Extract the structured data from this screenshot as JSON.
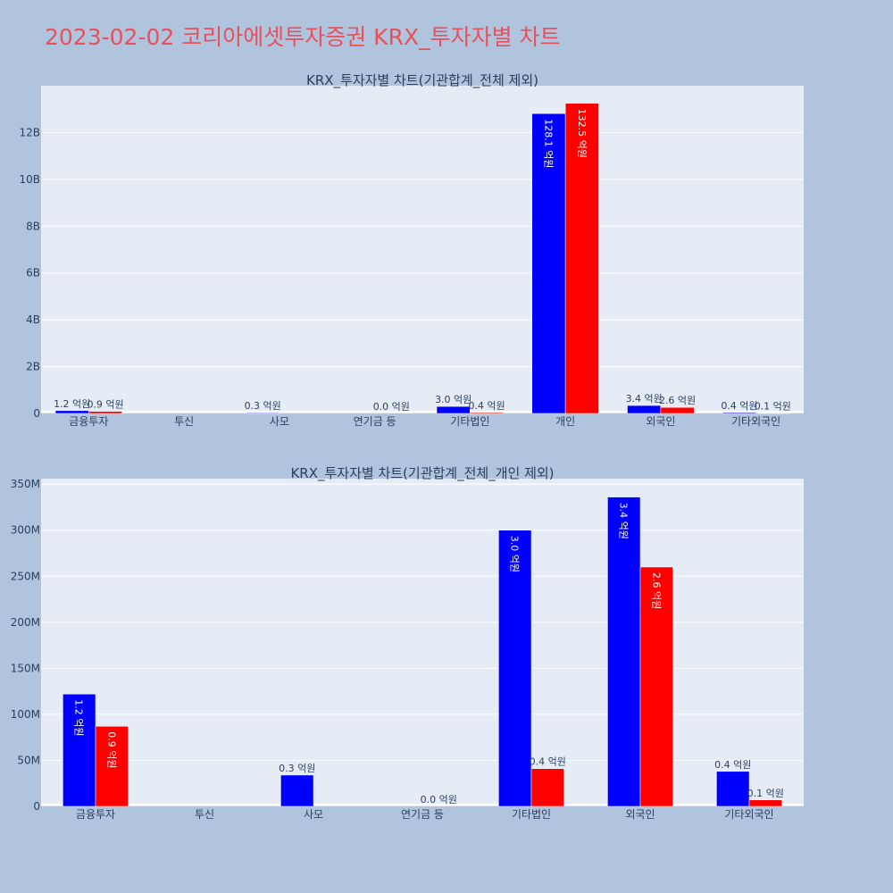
{
  "page": {
    "title": "2023-02-02 코리아에셋투자증권 KRX_투자자별 차트",
    "background": "#b0c4de",
    "title_color": "#e8505b"
  },
  "colors": {
    "series_buy": "#0000ff",
    "series_sell": "#ff0000",
    "plot_bg": "#e5ecf6",
    "text": "#2a3f5f"
  },
  "chart_data": [
    {
      "type": "bar",
      "title": "KRX_투자자별 차트(기관합계_전체 제외)",
      "categories": [
        "금융투자",
        "투신",
        "사모",
        "연기금 등",
        "기타법인",
        "개인",
        "외국인",
        "기타외국인"
      ],
      "ylim": [
        0,
        14000000000
      ],
      "yticks": [
        {
          "value": 0,
          "label": "0"
        },
        {
          "value": 2000000000,
          "label": "2B"
        },
        {
          "value": 4000000000,
          "label": "4B"
        },
        {
          "value": 6000000000,
          "label": "6B"
        },
        {
          "value": 8000000000,
          "label": "8B"
        },
        {
          "value": 10000000000,
          "label": "10B"
        },
        {
          "value": 12000000000,
          "label": "12B"
        }
      ],
      "grid": true,
      "series": [
        {
          "color": "#0000ff",
          "values": [
            120000000,
            0,
            30000000,
            0,
            300000000,
            12810000000,
            340000000,
            40000000
          ],
          "labels": [
            "1.2 억원",
            "",
            "0.3 억원",
            "",
            "3.0 억원",
            "128.1 억원",
            "3.4 억원",
            "0.4 억원"
          ]
        },
        {
          "color": "#ff0000",
          "values": [
            90000000,
            0,
            0,
            0,
            40000000,
            13250000000,
            260000000,
            10000000
          ],
          "labels": [
            "0.9 억원",
            "",
            "",
            "0.0 억원",
            "0.4 억원",
            "132.5 억원",
            "2.6 억원",
            "0.1 억원"
          ]
        }
      ]
    },
    {
      "type": "bar",
      "title": "KRX_투자자별 차트(기관합계_전체_개인 제외)",
      "categories": [
        "금융투자",
        "투신",
        "사모",
        "연기금 등",
        "기타법인",
        "외국인",
        "기타외국인"
      ],
      "ylim": [
        0,
        356000000
      ],
      "yticks": [
        {
          "value": 0,
          "label": "0"
        },
        {
          "value": 50000000,
          "label": "50M"
        },
        {
          "value": 100000000,
          "label": "100M"
        },
        {
          "value": 150000000,
          "label": "150M"
        },
        {
          "value": 200000000,
          "label": "200M"
        },
        {
          "value": 250000000,
          "label": "250M"
        },
        {
          "value": 300000000,
          "label": "300M"
        },
        {
          "value": 350000000,
          "label": "350M"
        }
      ],
      "grid": true,
      "series": [
        {
          "color": "#0000ff",
          "values": [
            122000000,
            0,
            34000000,
            0,
            300000000,
            336000000,
            38000000
          ],
          "labels": [
            "1.2 억원",
            "",
            "0.3 억원",
            "",
            "3.0 억원",
            "3.4 억원",
            "0.4 억원"
          ]
        },
        {
          "color": "#ff0000",
          "values": [
            87000000,
            0,
            0,
            0,
            41000000,
            260000000,
            7000000
          ],
          "labels": [
            "0.9 억원",
            "",
            "",
            "0.0 억원",
            "0.4 억원",
            "2.6 억원",
            "0.1 억원"
          ]
        }
      ]
    }
  ]
}
